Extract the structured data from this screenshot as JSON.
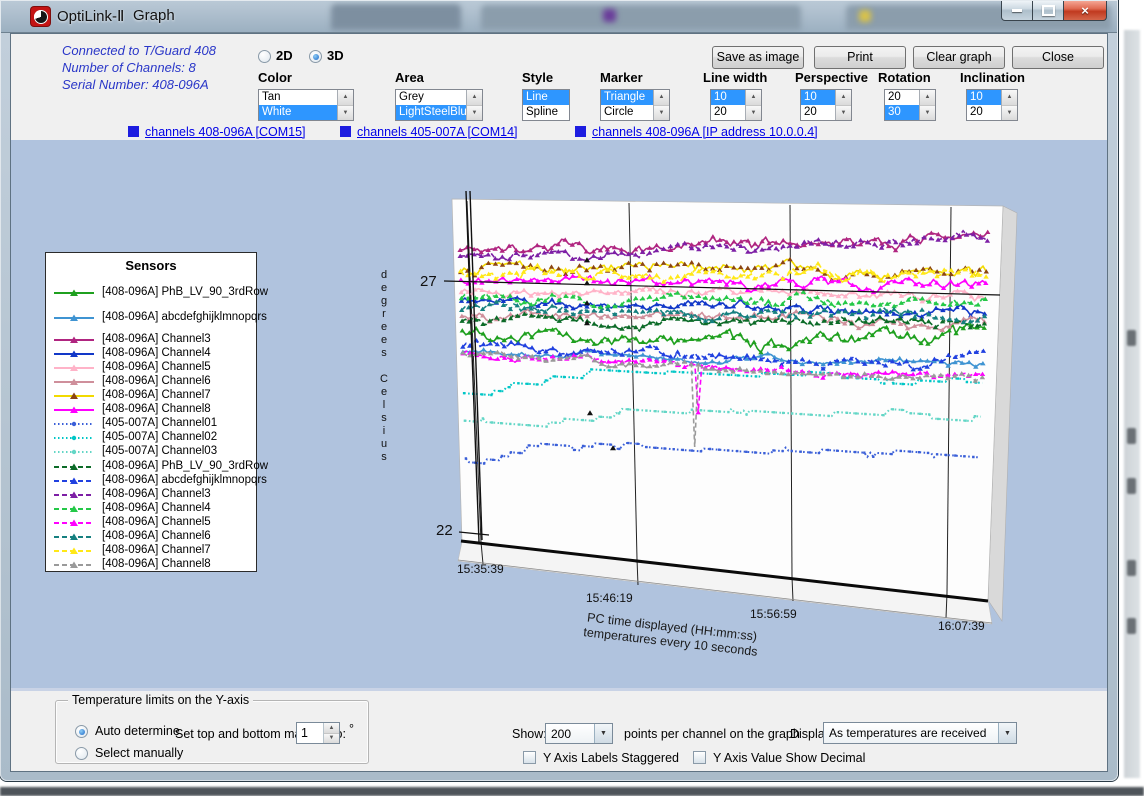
{
  "titlebar": {
    "title": "OptiLink-Ⅱ",
    "menu": "Graph"
  },
  "header": {
    "info_lines": [
      "Connected to T/Guard 408",
      "Number of Channels: 8",
      "Serial Number: 408-096A"
    ],
    "view_modes": [
      {
        "label": "2D",
        "selected": false
      },
      {
        "label": "3D",
        "selected": true
      }
    ],
    "buttons": [
      "Save as image",
      "Print",
      "Clear graph",
      "Close"
    ],
    "listboxes": [
      {
        "label": "Color",
        "options": [
          "Tan",
          "White"
        ],
        "selected": 1,
        "scroll": true
      },
      {
        "label": "Area",
        "options": [
          "Grey",
          "LightSteelBlue"
        ],
        "selected": 1,
        "scroll": true
      },
      {
        "label": "Style",
        "options": [
          "Line",
          "Spline"
        ],
        "selected": 0,
        "scroll": false
      },
      {
        "label": "Marker",
        "options": [
          "Triangle",
          "Circle"
        ],
        "selected": 0,
        "scroll": true
      },
      {
        "label": "Line width",
        "options": [
          "10",
          "20"
        ],
        "selected": 0,
        "scroll": true
      },
      {
        "label": "Perspective",
        "options": [
          "10",
          "20"
        ],
        "selected": 0,
        "scroll": true
      },
      {
        "label": "Rotation",
        "options": [
          "20",
          "30"
        ],
        "selected": 1,
        "scroll": true
      },
      {
        "label": "Inclination",
        "options": [
          "10",
          "20"
        ],
        "selected": 0,
        "scroll": true
      }
    ],
    "links": [
      {
        "label": "channels 408-096A [COM15]"
      },
      {
        "label": "channels 405-007A [COM14]"
      },
      {
        "label": "channels 408-096A [IP address 10.0.0.4]"
      }
    ]
  },
  "legend": {
    "title": "Sensors"
  },
  "chart_data": {
    "type": "line",
    "ylabel": "degrees Celsius",
    "y_ticks": [
      "27",
      "22"
    ],
    "x_ticks": [
      "15:35:39",
      "15:46:19",
      "15:56:59",
      "16:07:39"
    ],
    "caption_lines": [
      "PC time displayed (HH:mm:ss)",
      "temperatures every 10 seconds"
    ],
    "series": [
      {
        "name": "[408-096A] PhB_LV_90_3rdRow",
        "color": "#1fa01f",
        "line": "solid",
        "marker": "triangle",
        "type": "noisy",
        "v0": 0.385,
        "v1": 0.31,
        "amp": 0.016,
        "curve": 0.035
      },
      {
        "name": "[408-096A] abcdefghijklmnopqrs",
        "color": "#3f94d2",
        "line": "solid",
        "marker": "triangle",
        "type": "noisy",
        "v0": 0.437,
        "v1": 0.41,
        "amp": 0.008
      },
      {
        "name": "[408-096A] Channel3",
        "color": "#b02580",
        "line": "solid",
        "marker": "triangle",
        "type": "noisy",
        "v0": 0.15,
        "v1": 0.08,
        "amp": 0.014
      },
      {
        "name": "[408-096A] Channel4",
        "color": "#1238c8",
        "line": "solid",
        "marker": "triangle",
        "type": "noisy",
        "v0": 0.3,
        "v1": 0.27,
        "amp": 0.013
      },
      {
        "name": "[408-096A] Channel5",
        "color": "#ffb3c8",
        "line": "solid",
        "marker": "triangle",
        "type": "noisy",
        "v0": 0.262,
        "v1": 0.225,
        "amp": 0.012
      },
      {
        "name": "[408-096A] Channel6",
        "color": "#cf8f9b",
        "line": "solid",
        "marker": "triangle",
        "type": "noisy",
        "v0": 0.33,
        "v1": 0.3,
        "amp": 0.012
      },
      {
        "name": "[408-096A] Channel7",
        "color": "#f2da00",
        "marker_color": "#8b4513",
        "line": "solid",
        "marker": "triangle",
        "type": "noisy",
        "v0": 0.205,
        "v1": 0.16,
        "amp": 0.015
      },
      {
        "name": "[408-096A] Channel8",
        "color": "#ff00ff",
        "line": "solid",
        "marker": "triangle",
        "type": "noisy",
        "v0": 0.238,
        "v1": 0.2,
        "amp": 0.013
      },
      {
        "name": "[405-007A] Channel01",
        "color": "#3a5fd8",
        "line": "dotted",
        "marker": "dot",
        "type": "step",
        "v0": 0.755,
        "knee": 0.14,
        "vk": 0.695,
        "v1": 0.635
      },
      {
        "name": "[405-007A] Channel02",
        "color": "#00c6c6",
        "line": "dotted",
        "marker": "dot",
        "type": "step",
        "v0": 0.565,
        "knee": 0.13,
        "vk": 0.475,
        "v1": 0.45
      },
      {
        "name": "[405-007A] Channel03",
        "color": "#63d6c6",
        "line": "dotted",
        "marker": "dot",
        "type": "step",
        "v0": 0.645,
        "knee": 0.2,
        "vk": 0.585,
        "v1": 0.53
      },
      {
        "name": "[408-096A] PhB_LV_90_3rdRow",
        "color": "#0c6b28",
        "line": "dashed",
        "marker": "triangle",
        "type": "noisy",
        "v0": 0.352,
        "v1": 0.3,
        "amp": 0.012
      },
      {
        "name": "[408-096A] abcdefghijklmnopqrs",
        "color": "#2141e0",
        "line": "dashed",
        "marker": "triangle",
        "type": "noisy",
        "v0": 0.425,
        "v1": 0.415,
        "amp": 0.012,
        "rise": [
          0.88,
          -0.055
        ]
      },
      {
        "name": "[408-096A] Channel3",
        "color": "#7d1fa5",
        "line": "dashed",
        "marker": "triangle",
        "type": "noisy",
        "v0": 0.163,
        "v1": 0.09,
        "amp": 0.012
      },
      {
        "name": "[408-096A] Channel4",
        "color": "#24c848",
        "line": "dashed",
        "marker": "triangle",
        "type": "noisy",
        "v0": 0.288,
        "v1": 0.255,
        "amp": 0.013
      },
      {
        "name": "[408-096A] Channel5",
        "color": "#ff00ff",
        "line": "dashed",
        "marker": "triangle",
        "type": "noisy",
        "v0": 0.452,
        "v1": 0.44,
        "amp": 0.008,
        "spike": [
          0.445,
          0.575
        ]
      },
      {
        "name": "[408-096A] Channel6",
        "color": "#168080",
        "line": "dashed",
        "marker": "triangle",
        "type": "noisy",
        "v0": 0.315,
        "v1": 0.285,
        "amp": 0.012
      },
      {
        "name": "[408-096A] Channel7",
        "color": "#ffe818",
        "line": "dashed",
        "marker": "triangle",
        "type": "noisy",
        "v0": 0.215,
        "v1": 0.175,
        "amp": 0.014
      },
      {
        "name": "[408-096A] Channel8",
        "color": "#9a9a9a",
        "line": "dashed",
        "marker": "triangle",
        "type": "noisy",
        "v0": 0.455,
        "v1": 0.445,
        "amp": 0.008,
        "spike": [
          0.44,
          0.67
        ]
      }
    ]
  },
  "bottom": {
    "group_title": "Temperature limits on the Y-axis",
    "radios": [
      {
        "label": "Auto determine",
        "selected": true
      },
      {
        "label": "Select manually",
        "selected": false
      }
    ],
    "margins_label": "Set top and bottom margins to:",
    "margins_value": "1",
    "degree": "°",
    "show_label": "Show:",
    "show_value": "200",
    "points_label": "points per channel on the graph",
    "display_label": "Display:",
    "display_value": "As temperatures are received",
    "checkboxes": [
      {
        "label": "Y Axis Labels Staggered",
        "checked": false
      },
      {
        "label": "Y Axis Value Show Decimal",
        "checked": false
      }
    ]
  }
}
